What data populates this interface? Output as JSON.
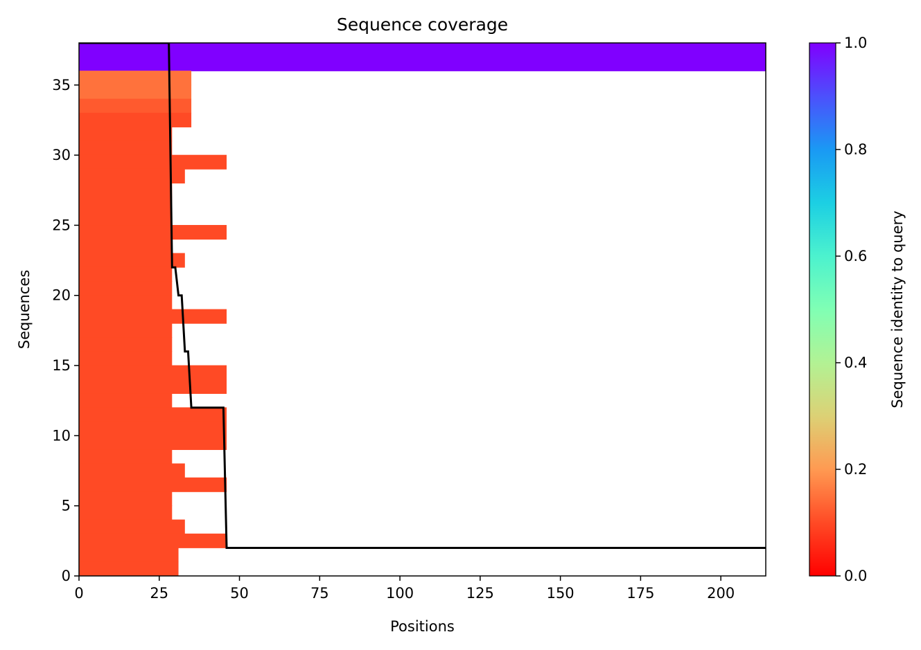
{
  "chart_data": {
    "type": "heatmap",
    "title": "Sequence coverage",
    "xlabel": "Positions",
    "ylabel": "Sequences",
    "xlim": [
      0,
      214
    ],
    "ylim": [
      0,
      38
    ],
    "xticks": [
      0,
      25,
      50,
      75,
      100,
      125,
      150,
      175,
      200
    ],
    "yticks": [
      0,
      5,
      10,
      15,
      20,
      25,
      30,
      35
    ],
    "grid": false,
    "colorbar": {
      "label": "Sequence identity to query",
      "colormap": "rainbow",
      "range": [
        0,
        1
      ],
      "ticks": [
        "0.0",
        "0.2",
        "0.4",
        "0.6",
        "0.8",
        "1.0"
      ],
      "stops": [
        {
          "v": 0.0,
          "color": "#ff0000"
        },
        {
          "v": 0.1,
          "color": "#ff4a25"
        },
        {
          "v": 0.2,
          "color": "#ff9a52"
        },
        {
          "v": 0.3,
          "color": "#dcd175"
        },
        {
          "v": 0.4,
          "color": "#b2f294"
        },
        {
          "v": 0.5,
          "color": "#80ffb4"
        },
        {
          "v": 0.6,
          "color": "#4cf2ce"
        },
        {
          "v": 0.7,
          "color": "#1ccfe3"
        },
        {
          "v": 0.8,
          "color": "#1a99f4"
        },
        {
          "v": 0.9,
          "color": "#4c50fc"
        },
        {
          "v": 1.0,
          "color": "#8000ff"
        }
      ]
    },
    "rows": [
      {
        "seq": 37,
        "start": 0,
        "end": 214,
        "identity": 1.0
      },
      {
        "seq": 36,
        "start": 0,
        "end": 214,
        "identity": 1.0
      },
      {
        "seq": 35,
        "start": 0,
        "end": 35,
        "identity": 0.15
      },
      {
        "seq": 34,
        "start": 0,
        "end": 35,
        "identity": 0.15
      },
      {
        "seq": 33,
        "start": 0,
        "end": 35,
        "identity": 0.12
      },
      {
        "seq": 32,
        "start": 0,
        "end": 35,
        "identity": 0.1
      },
      {
        "seq": 31,
        "start": 0,
        "end": 29,
        "identity": 0.1
      },
      {
        "seq": 30,
        "start": 0,
        "end": 29,
        "identity": 0.1
      },
      {
        "seq": 29,
        "start": 0,
        "end": 46,
        "identity": 0.1
      },
      {
        "seq": 28,
        "start": 0,
        "end": 33,
        "identity": 0.1
      },
      {
        "seq": 27,
        "start": 0,
        "end": 29,
        "identity": 0.1
      },
      {
        "seq": 26,
        "start": 0,
        "end": 29,
        "identity": 0.1
      },
      {
        "seq": 25,
        "start": 0,
        "end": 29,
        "identity": 0.1
      },
      {
        "seq": 24,
        "start": 0,
        "end": 46,
        "identity": 0.1
      },
      {
        "seq": 23,
        "start": 0,
        "end": 29,
        "identity": 0.1
      },
      {
        "seq": 22,
        "start": 0,
        "end": 33,
        "identity": 0.1
      },
      {
        "seq": 21,
        "start": 0,
        "end": 29,
        "identity": 0.1
      },
      {
        "seq": 20,
        "start": 0,
        "end": 29,
        "identity": 0.1
      },
      {
        "seq": 19,
        "start": 0,
        "end": 29,
        "identity": 0.1
      },
      {
        "seq": 18,
        "start": 0,
        "end": 46,
        "identity": 0.1
      },
      {
        "seq": 17,
        "start": 0,
        "end": 29,
        "identity": 0.1
      },
      {
        "seq": 16,
        "start": 0,
        "end": 29,
        "identity": 0.1
      },
      {
        "seq": 15,
        "start": 0,
        "end": 29,
        "identity": 0.1
      },
      {
        "seq": 14,
        "start": 0,
        "end": 46,
        "identity": 0.1
      },
      {
        "seq": 13,
        "start": 0,
        "end": 46,
        "identity": 0.1
      },
      {
        "seq": 12,
        "start": 0,
        "end": 29,
        "identity": 0.1
      },
      {
        "seq": 11,
        "start": 0,
        "end": 46,
        "identity": 0.1
      },
      {
        "seq": 10,
        "start": 0,
        "end": 46,
        "identity": 0.1
      },
      {
        "seq": 9,
        "start": 0,
        "end": 46,
        "identity": 0.1
      },
      {
        "seq": 8,
        "start": 0,
        "end": 29,
        "identity": 0.1
      },
      {
        "seq": 7,
        "start": 0,
        "end": 33,
        "identity": 0.1
      },
      {
        "seq": 6,
        "start": 0,
        "end": 46,
        "identity": 0.1
      },
      {
        "seq": 5,
        "start": 0,
        "end": 29,
        "identity": 0.1
      },
      {
        "seq": 4,
        "start": 0,
        "end": 29,
        "identity": 0.1
      },
      {
        "seq": 3,
        "start": 0,
        "end": 33,
        "identity": 0.1
      },
      {
        "seq": 2,
        "start": 0,
        "end": 46,
        "identity": 0.1
      },
      {
        "seq": 1,
        "start": 0,
        "end": 31,
        "identity": 0.1
      },
      {
        "seq": 0,
        "start": 0,
        "end": 31,
        "identity": 0.1
      }
    ],
    "coverage_line": {
      "color": "#000000",
      "points": [
        [
          0,
          38
        ],
        [
          28,
          38
        ],
        [
          29,
          22
        ],
        [
          30,
          22
        ],
        [
          31,
          20
        ],
        [
          32,
          20
        ],
        [
          33,
          16
        ],
        [
          34,
          16
        ],
        [
          35,
          12
        ],
        [
          45,
          12
        ],
        [
          46,
          2
        ],
        [
          214,
          2
        ]
      ]
    }
  }
}
